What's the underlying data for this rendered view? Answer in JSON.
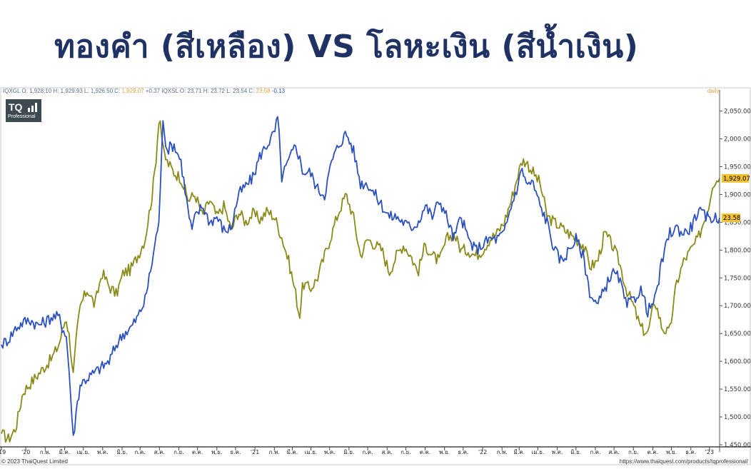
{
  "title": "ทองคำ (สีเหลือง) VS โลหะเงิน (สีน้ำเงิน)",
  "header": {
    "gold_prefix": "IQXGL O: 1,928.10 H: 1,929.93 L: 1,926.50 C:",
    "gold_close": "1,929.07",
    "gold_change": "+0.37",
    "silver_prefix": "IQXSL O: 23.71 H: 23.72 L: 23.54 C:",
    "silver_close": "23.58",
    "silver_change": "-0.13",
    "interval": "daily"
  },
  "logo": {
    "text": "TQ",
    "subtext": "Professional",
    "icon": "bar-chart-icon"
  },
  "footer": {
    "copyright": "© 2023 ThaiQuest Limited",
    "url": "https://www.thaiquest.com/products/tqprofessional/"
  },
  "colors": {
    "gold": "#8a8a1a",
    "silver": "#2a4fbf",
    "gold_label": "#f2c12e",
    "title": "#1f3263"
  },
  "chart_data": {
    "type": "line",
    "ylim": [
      1450,
      2070
    ],
    "y_ticks": [
      "2,050.00",
      "2,000.00",
      "1,950.00",
      "1,900.00",
      "1,850.00",
      "1,800.00",
      "1,750.00",
      "1,700.00",
      "1,650.00",
      "1,600.00",
      "1,550.00",
      "1,500.00",
      "1,450.00"
    ],
    "y_tick_values": [
      2050,
      2000,
      1950,
      1900,
      1850,
      1800,
      1750,
      1700,
      1650,
      1600,
      1550,
      1500,
      1450
    ],
    "x_ticks": [
      {
        "label": "'19",
        "t": 0.0
      },
      {
        "label": "'20",
        "t": 0.034
      },
      {
        "label": "ก.พ.",
        "t": 0.061
      },
      {
        "label": "มี.ค.",
        "t": 0.088
      },
      {
        "label": "เม.ย.",
        "t": 0.114
      },
      {
        "label": "พ.ค.",
        "t": 0.141
      },
      {
        "label": "มิ.ย.",
        "t": 0.168
      },
      {
        "label": "ก.ค.",
        "t": 0.193
      },
      {
        "label": "ส.ค.",
        "t": 0.22
      },
      {
        "label": "ก.ย.",
        "t": 0.247
      },
      {
        "label": "ต.ค.",
        "t": 0.273
      },
      {
        "label": "พ.ย.",
        "t": 0.3
      },
      {
        "label": "ธ.ค.",
        "t": 0.326
      },
      {
        "label": "'21",
        "t": 0.353
      },
      {
        "label": "ก.พ.",
        "t": 0.38
      },
      {
        "label": "มี.ค.",
        "t": 0.405
      },
      {
        "label": "เม.ย.",
        "t": 0.431
      },
      {
        "label": "พ.ค.",
        "t": 0.457
      },
      {
        "label": "มิ.ย.",
        "t": 0.484
      },
      {
        "label": "ก.ค.",
        "t": 0.51
      },
      {
        "label": "ส.ค.",
        "t": 0.537
      },
      {
        "label": "ก.ย.",
        "t": 0.563
      },
      {
        "label": "ต.ค.",
        "t": 0.59
      },
      {
        "label": "พ.ย.",
        "t": 0.617
      },
      {
        "label": "ธ.ค.",
        "t": 0.643
      },
      {
        "label": "'22",
        "t": 0.67
      },
      {
        "label": "ก.พ.",
        "t": 0.697
      },
      {
        "label": "มี.ค.",
        "t": 0.721
      },
      {
        "label": "เม.ย.",
        "t": 0.747
      },
      {
        "label": "พ.ค.",
        "t": 0.774
      },
      {
        "label": "มิ.ย.",
        "t": 0.8
      },
      {
        "label": "ก.ค.",
        "t": 0.827
      },
      {
        "label": "ส.ค.",
        "t": 0.853
      },
      {
        "label": "ก.ย.",
        "t": 0.88
      },
      {
        "label": "ต.ค.",
        "t": 0.907
      },
      {
        "label": "พ.ย.",
        "t": 0.933
      },
      {
        "label": "ธ.ค.",
        "t": 0.96
      },
      {
        "label": "'23",
        "t": 0.986
      }
    ],
    "series": [
      {
        "name": "IQXGL",
        "color": "#8a8a1a",
        "t": [
          0,
          0.01,
          0.02,
          0.03,
          0.04,
          0.05,
          0.06,
          0.07,
          0.08,
          0.09,
          0.095,
          0.1,
          0.105,
          0.11,
          0.12,
          0.13,
          0.14,
          0.15,
          0.16,
          0.17,
          0.18,
          0.19,
          0.2,
          0.21,
          0.215,
          0.22,
          0.225,
          0.23,
          0.24,
          0.25,
          0.26,
          0.27,
          0.28,
          0.29,
          0.3,
          0.31,
          0.32,
          0.33,
          0.34,
          0.35,
          0.36,
          0.37,
          0.38,
          0.39,
          0.4,
          0.41,
          0.415,
          0.42,
          0.43,
          0.44,
          0.45,
          0.46,
          0.47,
          0.48,
          0.49,
          0.5,
          0.51,
          0.52,
          0.53,
          0.54,
          0.55,
          0.56,
          0.57,
          0.58,
          0.59,
          0.6,
          0.61,
          0.62,
          0.63,
          0.64,
          0.65,
          0.66,
          0.67,
          0.68,
          0.69,
          0.7,
          0.71,
          0.72,
          0.725,
          0.73,
          0.74,
          0.75,
          0.76,
          0.77,
          0.78,
          0.79,
          0.8,
          0.81,
          0.82,
          0.83,
          0.84,
          0.85,
          0.86,
          0.87,
          0.88,
          0.89,
          0.9,
          0.91,
          0.92,
          0.93,
          0.94,
          0.95,
          0.96,
          0.97,
          0.98,
          0.985,
          0.99,
          1.0
        ],
        "values": [
          1470,
          1460,
          1480,
          1545,
          1560,
          1575,
          1590,
          1605,
          1630,
          1680,
          1640,
          1575,
          1650,
          1700,
          1730,
          1700,
          1760,
          1735,
          1720,
          1760,
          1765,
          1790,
          1820,
          1900,
          1960,
          2050,
          1980,
          1960,
          1940,
          1930,
          1890,
          1900,
          1860,
          1890,
          1860,
          1880,
          1835,
          1870,
          1850,
          1865,
          1855,
          1870,
          1860,
          1825,
          1780,
          1720,
          1680,
          1740,
          1730,
          1750,
          1790,
          1830,
          1870,
          1900,
          1860,
          1790,
          1820,
          1810,
          1800,
          1760,
          1790,
          1810,
          1790,
          1760,
          1810,
          1790,
          1780,
          1820,
          1830,
          1800,
          1800,
          1790,
          1800,
          1820,
          1830,
          1850,
          1890,
          1940,
          1960,
          1960,
          1940,
          1920,
          1860,
          1850,
          1840,
          1830,
          1820,
          1810,
          1770,
          1780,
          1830,
          1810,
          1780,
          1730,
          1700,
          1660,
          1650,
          1710,
          1660,
          1650,
          1740,
          1780,
          1800,
          1820,
          1860,
          1880,
          1920,
          1929
        ]
      },
      {
        "name": "IQXSL",
        "color": "#2a4fbf",
        "t": [
          0,
          0.01,
          0.02,
          0.03,
          0.04,
          0.05,
          0.06,
          0.07,
          0.08,
          0.085,
          0.09,
          0.095,
          0.1,
          0.105,
          0.11,
          0.12,
          0.13,
          0.14,
          0.15,
          0.16,
          0.17,
          0.18,
          0.19,
          0.2,
          0.21,
          0.22,
          0.225,
          0.23,
          0.24,
          0.25,
          0.26,
          0.265,
          0.27,
          0.28,
          0.29,
          0.3,
          0.31,
          0.32,
          0.33,
          0.34,
          0.35,
          0.36,
          0.37,
          0.38,
          0.385,
          0.39,
          0.4,
          0.41,
          0.42,
          0.43,
          0.44,
          0.45,
          0.46,
          0.47,
          0.48,
          0.49,
          0.5,
          0.51,
          0.52,
          0.53,
          0.54,
          0.55,
          0.56,
          0.57,
          0.58,
          0.59,
          0.6,
          0.61,
          0.62,
          0.63,
          0.64,
          0.65,
          0.66,
          0.67,
          0.68,
          0.69,
          0.7,
          0.71,
          0.72,
          0.725,
          0.73,
          0.74,
          0.75,
          0.76,
          0.77,
          0.78,
          0.79,
          0.8,
          0.81,
          0.82,
          0.83,
          0.84,
          0.85,
          0.86,
          0.87,
          0.88,
          0.89,
          0.9,
          0.91,
          0.92,
          0.93,
          0.94,
          0.95,
          0.96,
          0.97,
          0.98,
          0.99,
          1.0
        ],
        "values": [
          1630,
          1640,
          1660,
          1670,
          1675,
          1665,
          1670,
          1680,
          1680,
          1660,
          1650,
          1570,
          1460,
          1520,
          1560,
          1570,
          1580,
          1590,
          1600,
          1630,
          1650,
          1660,
          1680,
          1710,
          1780,
          1860,
          2040,
          1980,
          1990,
          1960,
          1870,
          1835,
          1860,
          1880,
          1850,
          1860,
          1835,
          1840,
          1900,
          1915,
          1930,
          1970,
          1990,
          2010,
          2040,
          1930,
          1960,
          1990,
          1940,
          1940,
          1910,
          1900,
          1960,
          1990,
          2010,
          1980,
          1920,
          1920,
          1900,
          1880,
          1860,
          1860,
          1850,
          1840,
          1850,
          1880,
          1860,
          1890,
          1860,
          1820,
          1860,
          1820,
          1800,
          1810,
          1820,
          1820,
          1830,
          1880,
          1920,
          1950,
          1920,
          1920,
          1880,
          1850,
          1800,
          1780,
          1800,
          1820,
          1790,
          1720,
          1700,
          1730,
          1760,
          1750,
          1700,
          1710,
          1730,
          1690,
          1710,
          1780,
          1830,
          1840,
          1830,
          1840,
          1870,
          1860,
          1858,
          1858
        ]
      }
    ],
    "last_labels": {
      "gold": "1,929.07",
      "silver": "23.58"
    }
  }
}
